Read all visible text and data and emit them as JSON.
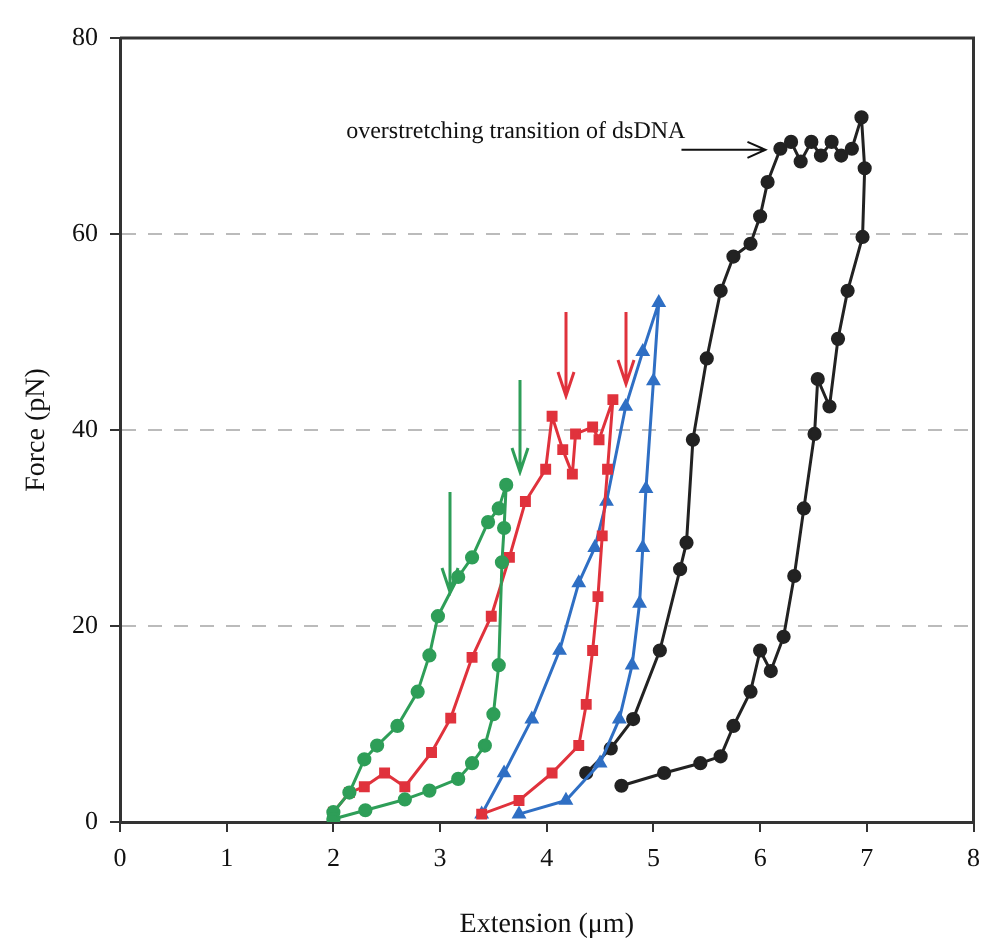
{
  "chart_data": {
    "type": "line",
    "xlabel": "Extension (μm)",
    "ylabel": "Force (pN)",
    "xlim": [
      0,
      8
    ],
    "ylim": [
      0,
      80
    ],
    "xticks": [
      0,
      1,
      2,
      3,
      4,
      5,
      6,
      7,
      8
    ],
    "yticks": [
      0,
      20,
      40,
      60,
      80
    ],
    "grid": "y",
    "annotations": [
      {
        "text": "overstretching transition of dsDNA",
        "x": 6.2,
        "y": 69
      }
    ],
    "series": [
      {
        "color": "#2e9e58",
        "marker": "circle",
        "x": [
          2.0,
          2.15,
          2.29,
          2.41,
          2.6,
          2.79,
          2.9,
          2.98,
          3.17,
          3.3,
          3.45,
          3.55,
          3.62,
          3.6,
          3.58,
          3.55,
          3.5,
          3.42,
          3.3,
          3.17,
          2.9,
          2.67,
          2.3,
          2.0
        ],
        "values": [
          1,
          3,
          6.4,
          7.8,
          9.8,
          13.3,
          17,
          21,
          25,
          27,
          30.6,
          32,
          34.4,
          30,
          26.5,
          16,
          11,
          7.8,
          6,
          4.4,
          3.2,
          2.3,
          1.2,
          0.3
        ]
      },
      {
        "color": "#e0323c",
        "marker": "square",
        "x": [
          2.0,
          2.15,
          2.29,
          2.48,
          2.67,
          2.92,
          3.1,
          3.3,
          3.48,
          3.65,
          3.8,
          3.99,
          4.05,
          4.15,
          4.24,
          4.27,
          4.43,
          4.49,
          4.62,
          4.57,
          4.52,
          4.48,
          4.43,
          4.37,
          4.3,
          4.05,
          3.74,
          3.39
        ],
        "values": [
          1,
          3,
          3.6,
          5,
          3.6,
          7.1,
          10.6,
          16.8,
          21,
          27,
          32.7,
          36,
          41.4,
          38,
          35.5,
          39.6,
          40.3,
          39,
          43.1,
          36,
          29.2,
          23,
          17.5,
          12,
          7.8,
          5,
          2.2,
          0.8
        ]
      },
      {
        "color": "#2f6fc4",
        "marker": "triangle",
        "x": [
          3.39,
          3.6,
          3.86,
          4.12,
          4.3,
          4.45,
          4.56,
          4.74,
          4.9,
          5.05,
          5.0,
          4.93,
          4.9,
          4.87,
          4.8,
          4.68,
          4.5,
          4.18,
          3.74
        ],
        "values": [
          0.8,
          5,
          10.5,
          17.5,
          24.4,
          28,
          32.7,
          42.4,
          48,
          53,
          45,
          34,
          28,
          22.3,
          16,
          10.5,
          6,
          2.2,
          0.8
        ]
      },
      {
        "color": "#222222",
        "marker": "circle",
        "x": [
          4.37,
          4.6,
          4.81,
          5.06,
          5.25,
          5.31,
          5.37,
          5.5,
          5.63,
          5.75,
          5.91,
          6.0,
          6.07,
          6.19,
          6.29,
          6.38,
          6.48,
          6.57,
          6.67,
          6.76,
          6.86,
          6.95,
          6.98,
          6.96,
          6.82,
          6.73,
          6.65,
          6.54,
          6.51,
          6.41,
          6.32,
          6.22,
          6.1,
          6.0,
          5.91,
          5.75,
          5.63,
          5.44,
          5.1,
          4.7
        ],
        "values": [
          5,
          7.5,
          10.5,
          17.5,
          25.8,
          28.5,
          39,
          47.3,
          54.2,
          57.7,
          59,
          61.8,
          65.3,
          68.7,
          69.4,
          67.4,
          69.4,
          68,
          69.4,
          68,
          68.7,
          71.9,
          66.7,
          59.7,
          54.2,
          49.3,
          42.4,
          45.2,
          39.6,
          32,
          25.1,
          18.9,
          15.4,
          17.5,
          13.3,
          9.8,
          6.7,
          6,
          5,
          3.7
        ]
      }
    ]
  }
}
